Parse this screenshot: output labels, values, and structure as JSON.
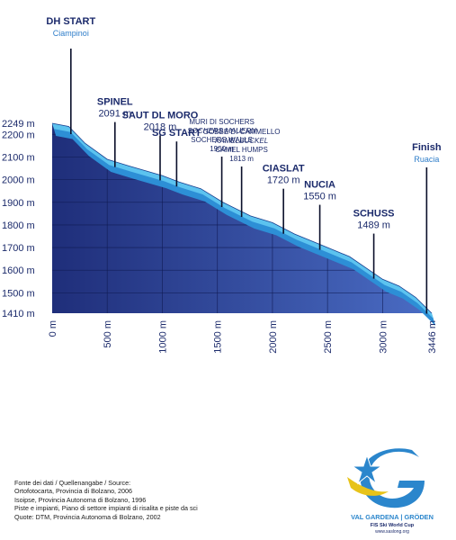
{
  "chart_data": {
    "type": "area",
    "xlim": [
      0,
      3446
    ],
    "ylim": [
      1410,
      2249
    ],
    "x_ticks": [
      {
        "value": 0,
        "label": "0 m"
      },
      {
        "value": 500,
        "label": "500 m"
      },
      {
        "value": 1000,
        "label": "1000 m"
      },
      {
        "value": 1500,
        "label": "1500 m"
      },
      {
        "value": 2000,
        "label": "2000 m"
      },
      {
        "value": 2500,
        "label": "2500 m"
      },
      {
        "value": 3000,
        "label": "3000 m"
      },
      {
        "value": 3446,
        "label": "3446 m"
      }
    ],
    "y_ticks": [
      {
        "value": 2249,
        "label": "2249 m"
      },
      {
        "value": 2200,
        "label": "2200 m"
      },
      {
        "value": 2100,
        "label": "2100 m"
      },
      {
        "value": 2000,
        "label": "2000 m"
      },
      {
        "value": 1900,
        "label": "1900 m"
      },
      {
        "value": 1800,
        "label": "1800 m"
      },
      {
        "value": 1700,
        "label": "1700 m"
      },
      {
        "value": 1600,
        "label": "1600 m"
      },
      {
        "value": 1500,
        "label": "1500 m"
      },
      {
        "value": 1410,
        "label": "1410 m"
      }
    ],
    "profile": [
      {
        "x": 0,
        "y": 2249
      },
      {
        "x": 150,
        "y": 2235
      },
      {
        "x": 300,
        "y": 2160
      },
      {
        "x": 500,
        "y": 2090
      },
      {
        "x": 700,
        "y": 2060
      },
      {
        "x": 1000,
        "y": 2018
      },
      {
        "x": 1150,
        "y": 1990
      },
      {
        "x": 1350,
        "y": 1960
      },
      {
        "x": 1550,
        "y": 1900
      },
      {
        "x": 1800,
        "y": 1840
      },
      {
        "x": 2000,
        "y": 1810
      },
      {
        "x": 2200,
        "y": 1760
      },
      {
        "x": 2400,
        "y": 1720
      },
      {
        "x": 2700,
        "y": 1660
      },
      {
        "x": 3000,
        "y": 1560
      },
      {
        "x": 3150,
        "y": 1530
      },
      {
        "x": 3300,
        "y": 1480
      },
      {
        "x": 3446,
        "y": 1410
      }
    ],
    "annotations": [
      {
        "x": 170,
        "lines": [
          "DH START"
        ],
        "sub": "Ciampinoi",
        "tall": true
      },
      {
        "x": 570,
        "lines": [
          "SPINEL",
          "2091 m"
        ]
      },
      {
        "x": 980,
        "lines": [
          "SAUT DL MORO",
          "2018 m"
        ]
      },
      {
        "x": 1130,
        "lines": [
          "SG START"
        ]
      },
      {
        "x": 1540,
        "lines": [
          "MURI DI SOCHERS",
          "SOCHERS MAUERN",
          "SOCHERS WALLS",
          "1900 m"
        ],
        "small": true
      },
      {
        "x": 1720,
        "lines": [
          "GOBBE DI CAMMELLO",
          "KAMELBUCKEL",
          "CAMEL HUMPS",
          "1813 m"
        ],
        "small": true
      },
      {
        "x": 2100,
        "lines": [
          "CIASLAT",
          "1720 m"
        ]
      },
      {
        "x": 2430,
        "lines": [
          "NUCIA",
          "1550 m"
        ]
      },
      {
        "x": 2920,
        "lines": [
          "SCHUSS",
          "1489 m"
        ]
      },
      {
        "x": 3400,
        "lines": [
          "Finish"
        ],
        "sub": "Ruacia"
      }
    ]
  },
  "sources": {
    "lines": [
      "Fonte dei dati / Quellenangabe / Source:",
      "Ortofotocarta, Provincia di Bolzano, 2006",
      "Isoipse, Provincia Autonoma di Bolzano, 1996",
      "Piste e impianti, Piano di settore impianti di risalita e piste da sci",
      "Quote: DTM, Provincia Autonoma di Bolzano, 2002"
    ]
  },
  "logo": {
    "name": "VAL GARDENA | GRÖDEN",
    "event": "FIS Ski World Cup",
    "url": "www.saslong.org"
  },
  "colors": {
    "profile_dark": "#1f2e7a",
    "profile_light": "#3f5fba",
    "slope_top": "#5cc3ef",
    "slope_side": "#2d8fd6",
    "text_dark": "#1b2a6b",
    "accent_blue": "#2e7dc9",
    "logo_yellow": "#e7c31a",
    "logo_blue": "#2b86cc"
  }
}
